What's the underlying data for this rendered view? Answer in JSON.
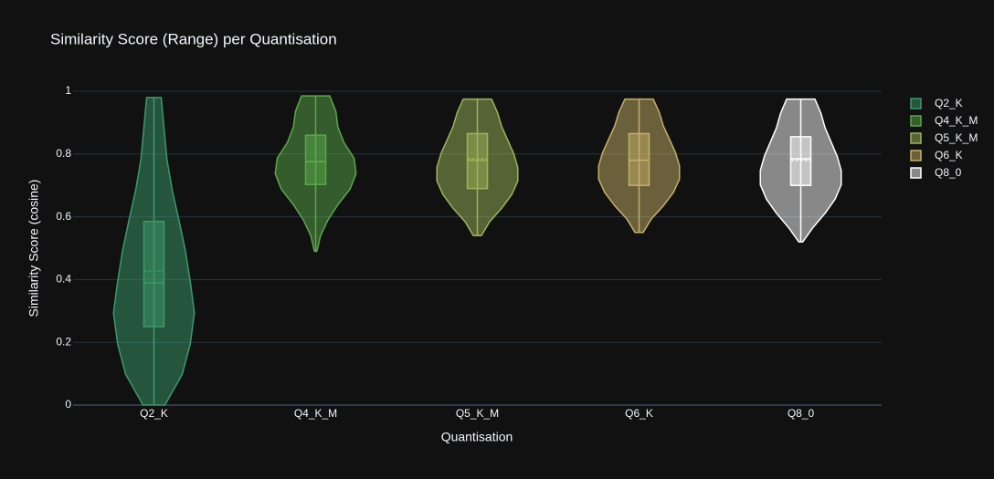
{
  "chart_data": {
    "type": "violin",
    "title": "Similarity Score (Range) per Quantisation",
    "x_label": "Quantisation",
    "y_label": "Similarity Score (cosine)",
    "ylim": [
      0,
      1
    ],
    "yticks": [
      0,
      0.2,
      0.4,
      0.6,
      0.8,
      1
    ],
    "grid": true,
    "legend": "top-right",
    "categories": [
      "Q2_K",
      "Q4_K_M",
      "Q5_K_M",
      "Q6_K",
      "Q8_0"
    ],
    "series": [
      {
        "name": "Q2_K",
        "color": "#3c9a6a",
        "min": 0,
        "q1": 0.25,
        "median": 0.39,
        "q3": 0.585,
        "max": 0.98,
        "mean": 0.427,
        "density": [
          0.27,
          0.7,
          0.9,
          1.0,
          0.9,
          0.78,
          0.62,
          0.45,
          0.32,
          0.25,
          0.18
        ]
      },
      {
        "name": "Q4_K_M",
        "color": "#5aa84a",
        "min": 0.49,
        "q1": 0.703,
        "median": 0.775,
        "q3": 0.86,
        "max": 0.985,
        "mean": 0.777,
        "density": [
          0.03,
          0.12,
          0.3,
          0.55,
          0.85,
          1.0,
          0.95,
          0.7,
          0.55,
          0.5,
          0.35
        ]
      },
      {
        "name": "Q5_K_M",
        "color": "#9cb55a",
        "min": 0.54,
        "q1": 0.69,
        "median": 0.78,
        "q3": 0.865,
        "max": 0.975,
        "mean": 0.785,
        "density": [
          0.1,
          0.3,
          0.6,
          0.85,
          1.0,
          1.0,
          0.9,
          0.75,
          0.6,
          0.5,
          0.35
        ]
      },
      {
        "name": "Q6_K",
        "color": "#c4b068",
        "min": 0.55,
        "q1": 0.7,
        "median": 0.78,
        "q3": 0.865,
        "max": 0.975,
        "mean": 0.78,
        "density": [
          0.1,
          0.3,
          0.6,
          0.85,
          1.0,
          1.0,
          0.9,
          0.75,
          0.6,
          0.5,
          0.35
        ]
      },
      {
        "name": "Q8_0",
        "color": "#ffffff",
        "min": 0.52,
        "q1": 0.7,
        "median": 0.785,
        "q3": 0.855,
        "max": 0.975,
        "mean": 0.78,
        "density": [
          0.05,
          0.3,
          0.6,
          0.85,
          1.0,
          1.0,
          0.9,
          0.75,
          0.6,
          0.5,
          0.35
        ]
      }
    ]
  }
}
